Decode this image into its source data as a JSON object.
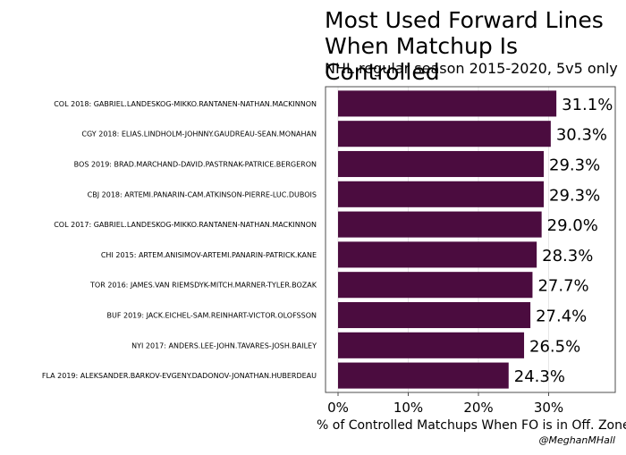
{
  "chart_data": {
    "type": "bar",
    "orientation": "horizontal",
    "title": "Most Used Forward Lines\nWhen Matchup Is Controlled",
    "subtitle": "NHL regular season 2015-2020, 5v5 only",
    "xlabel": "% of Controlled Matchups When FO is in Off. Zone",
    "credit": "@MeghanMHall",
    "categories": [
      "COL 2018: GABRIEL.LANDESKOG-MIKKO.RANTANEN-NATHAN.MACKINNON",
      "CGY 2018: ELIAS.LINDHOLM-JOHNNY.GAUDREAU-SEAN.MONAHAN",
      "BOS 2019: BRAD.MARCHAND-DAVID.PASTRNAK-PATRICE.BERGERON",
      "CBJ 2018: ARTEMI.PANARIN-CAM.ATKINSON-PIERRE-LUC.DUBOIS",
      "COL 2017: GABRIEL.LANDESKOG-MIKKO.RANTANEN-NATHAN.MACKINNON",
      "CHI 2015: ARTEM.ANISIMOV-ARTEMI.PANARIN-PATRICK.KANE",
      "TOR 2016: JAMES.VAN RIEMSDYK-MITCH.MARNER-TYLER.BOZAK",
      "BUF 2019: JACK.EICHEL-SAM.REINHART-VICTOR.OLOFSSON",
      "NYI 2017: ANDERS.LEE-JOHN.TAVARES-JOSH.BAILEY",
      "FLA 2019: ALEKSANDER.BARKOV-EVGENY.DADONOV-JONATHAN.HUBERDEAU"
    ],
    "values": [
      31.1,
      30.3,
      29.3,
      29.3,
      29.0,
      28.3,
      27.7,
      27.4,
      26.5,
      24.3
    ],
    "value_labels": [
      "31.1%",
      "30.3%",
      "29.3%",
      "29.3%",
      "29.0%",
      "28.3%",
      "27.7%",
      "27.4%",
      "26.5%",
      "24.3%"
    ],
    "xticks": [
      0,
      10,
      20,
      30
    ],
    "xtick_labels": [
      "0%",
      "10%",
      "20%",
      "30%"
    ],
    "xlim": [
      0,
      39
    ],
    "grid": true,
    "colors": {
      "bar": "#4b0c3f",
      "grid": "#e6e6e6",
      "panel_border": "#4d4d4d"
    }
  }
}
